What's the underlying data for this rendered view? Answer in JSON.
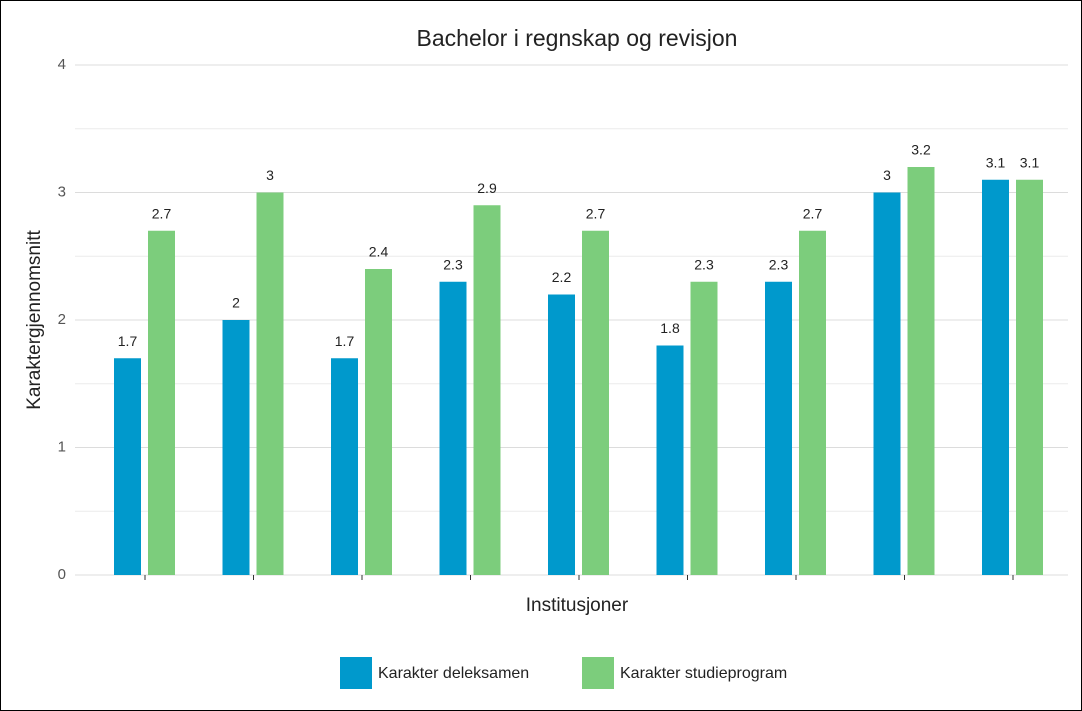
{
  "chart_data": {
    "type": "bar",
    "title": "Bachelor i regnskap og revisjon",
    "x_label": "Institusjoner",
    "y_label": "Karaktergjennomsnitt",
    "categories": [
      null,
      null,
      null,
      null,
      null,
      null,
      null,
      null,
      null
    ],
    "series": [
      {
        "name": "Karakter deleksamen",
        "color": "#0099cc",
        "values": [
          1.7,
          2,
          1.7,
          2.3,
          2.2,
          1.8,
          2.3,
          3,
          3.1
        ]
      },
      {
        "name": "Karakter studieprogram",
        "color": "#7ccd7c",
        "values": [
          2.7,
          3,
          2.4,
          2.9,
          2.7,
          2.3,
          2.7,
          3.2,
          3.1
        ]
      }
    ],
    "ylim": [
      0,
      4
    ],
    "yticks": [
      0,
      1,
      2,
      3,
      4
    ],
    "grid": true,
    "legend": "bottom"
  }
}
